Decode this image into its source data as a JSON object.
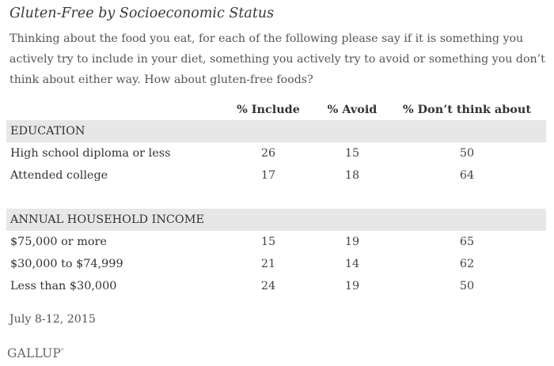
{
  "title": "Gluten-Free by Socioeconomic Status",
  "subtitle": "Thinking about the food you eat, for each of the following please say if it is something you actively try to include in your diet, something you actively try to avoid or something you don’t think about either way. How about gluten-free foods?",
  "date": "July 8-12, 2015",
  "brand": "GALLUP",
  "chart_data": {
    "type": "table",
    "title": "Gluten-Free by Socioeconomic Status",
    "columns": [
      "% Include",
      "% Avoid",
      "% Don’t think about"
    ],
    "sections": [
      {
        "heading": "EDUCATION",
        "rows": [
          {
            "label": "High school diploma or less",
            "values": [
              "26",
              "15",
              "50"
            ]
          },
          {
            "label": "Attended college",
            "values": [
              "17",
              "18",
              "64"
            ]
          }
        ]
      },
      {
        "heading": "ANNUAL HOUSEHOLD INCOME",
        "rows": [
          {
            "label": "$75,000 or more",
            "values": [
              "15",
              "19",
              "65"
            ]
          },
          {
            "label": "$30,000 to $74,999",
            "values": [
              "21",
              "14",
              "62"
            ]
          },
          {
            "label": "Less than $30,000",
            "values": [
              "24",
              "19",
              "50"
            ]
          }
        ]
      }
    ]
  }
}
